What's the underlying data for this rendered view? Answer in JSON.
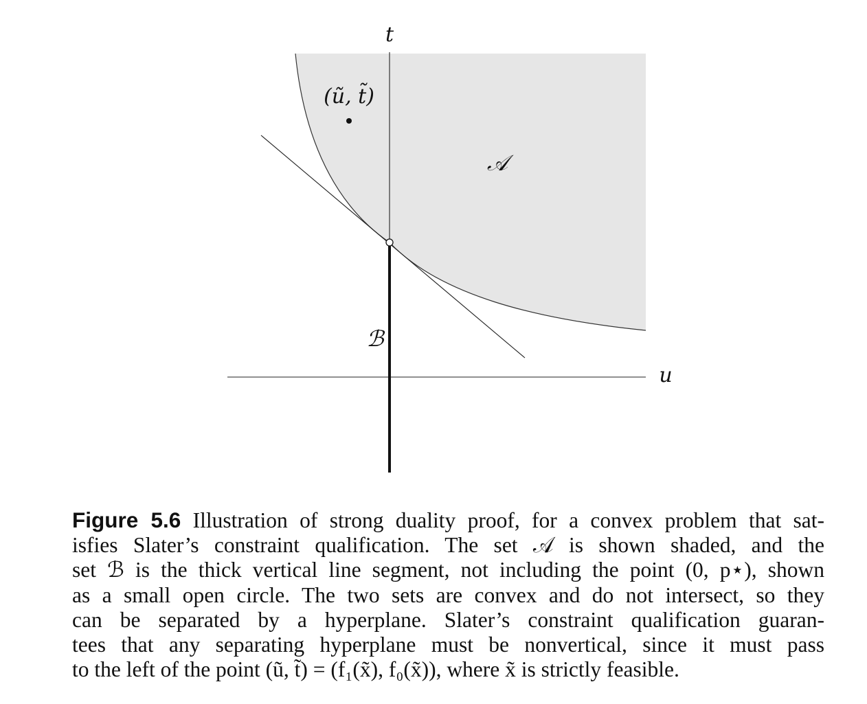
{
  "figure": {
    "axis_labels": {
      "t": "t",
      "u": "u"
    },
    "point_label": "(ũ, t̃)",
    "set_a_label": "𝒜",
    "set_b_label": "ℬ"
  },
  "caption": {
    "number": "Figure 5.6",
    "lines": [
      "Illustration of strong duality proof, for a convex problem that sat-",
      "isfies Slater’s constraint qualification.  The set 𝒜 is shown shaded, and the",
      "set ℬ is the thick vertical line segment, not including the point (0, p⋆), shown",
      "as a small open circle.  The two sets are convex and do not intersect, so they",
      "can be separated by a hyperplane.  Slater’s constraint qualification guaran-",
      "tees that any separating hyperplane must be nonvertical, since it must pass",
      "to the left of the point (ũ, t̃) = (f₁(x̃), f₀(x̃)), where x̃ is strictly feasible."
    ]
  },
  "colors": {
    "shade": "#e6e6e6",
    "ink": "#111111"
  }
}
